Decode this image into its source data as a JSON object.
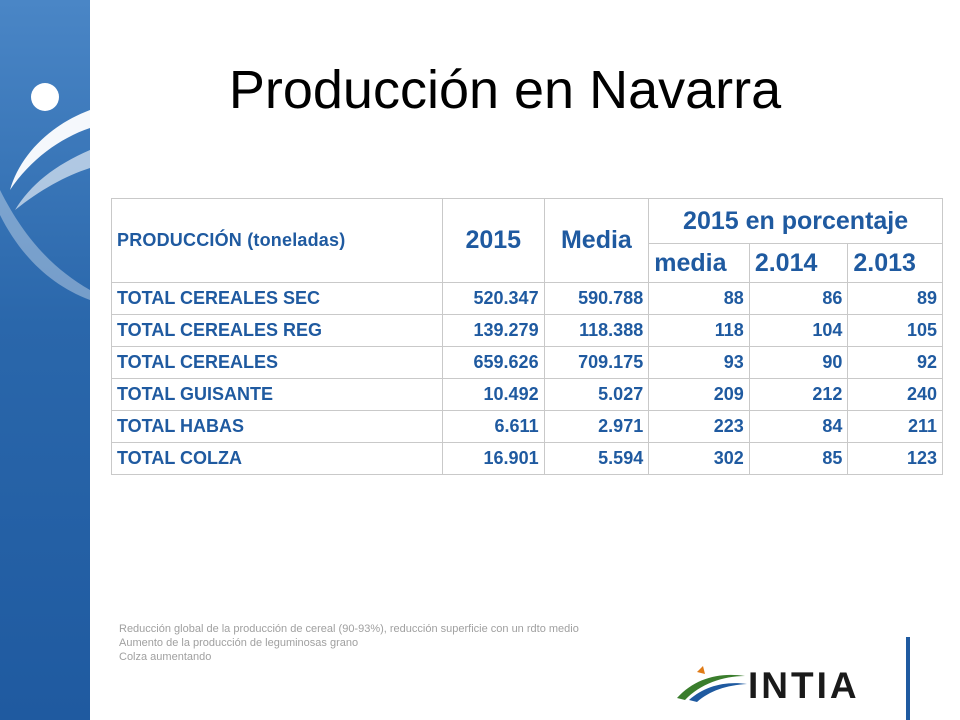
{
  "slide": {
    "title": "Producción en Navarra",
    "accent_color": "#1f5aa0"
  },
  "table": {
    "header_label": "PRODUCCIÓN (toneladas)",
    "col_2015": "2015",
    "col_media": "Media",
    "col_pct": "2015 en porcentaje",
    "sub_media": "media",
    "sub_2014": "2.014",
    "sub_2013": "2.013",
    "rows": [
      {
        "name": "TOTAL CEREALES SEC",
        "v2015": "520.347",
        "media": "590.788",
        "p_media": "88",
        "p_2014": "86",
        "p_2013": "89"
      },
      {
        "name": "TOTAL CEREALES REG",
        "v2015": "139.279",
        "media": "118.388",
        "p_media": "118",
        "p_2014": "104",
        "p_2013": "105"
      },
      {
        "name": "TOTAL CEREALES",
        "v2015": "659.626",
        "media": "709.175",
        "p_media": "93",
        "p_2014": "90",
        "p_2013": "92"
      },
      {
        "name": "TOTAL GUISANTE",
        "v2015": "10.492",
        "media": "5.027",
        "p_media": "209",
        "p_2014": "212",
        "p_2013": "240"
      },
      {
        "name": "TOTAL HABAS",
        "v2015": "6.611",
        "media": "2.971",
        "p_media": "223",
        "p_2014": "84",
        "p_2013": "211"
      },
      {
        "name": "TOTAL COLZA",
        "v2015": "16.901",
        "media": "5.594",
        "p_media": "302",
        "p_2014": "85",
        "p_2013": "123"
      }
    ]
  },
  "notes": [
    "Reducción global de la producción de cereal (90-93%),  reducción superficie con un rdto medio",
    "Aumento de la producción de leguminosas grano",
    "Colza aumentando"
  ],
  "logo": {
    "text": "INTIA",
    "icon": "intia-swoosh-logo-icon"
  }
}
